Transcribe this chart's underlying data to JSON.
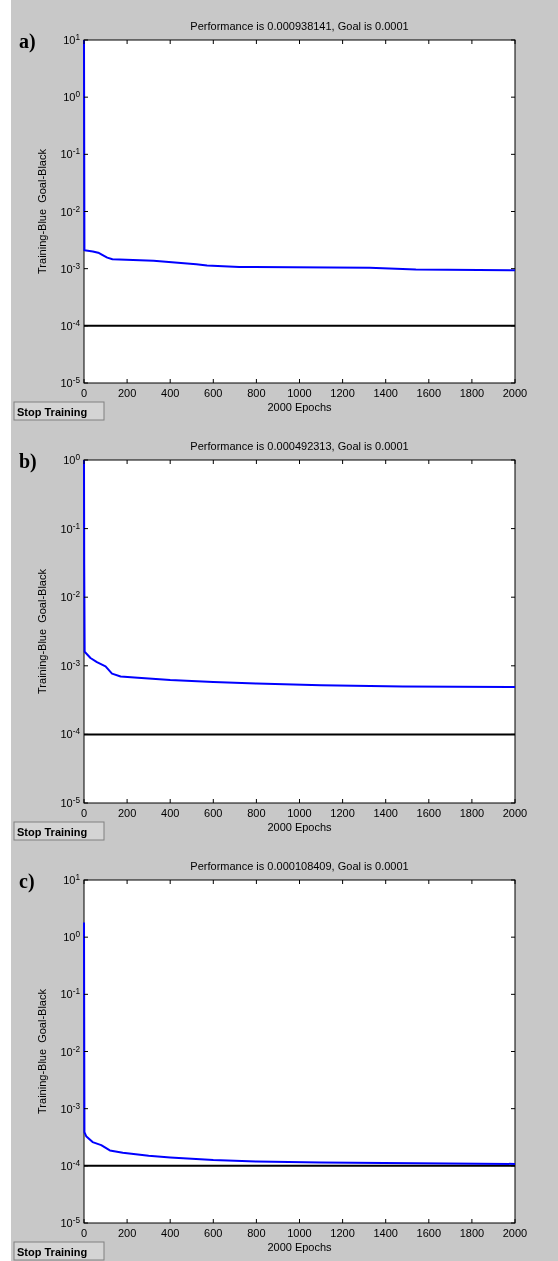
{
  "chart_data": [
    {
      "type": "line",
      "title": "Performance is 0.000938141, Goal is 0.0001",
      "xlabel": "2000 Epochs",
      "ylabel": "Training-Blue  Goal-Black",
      "annotations": [
        "a)",
        "Stop Training"
      ],
      "log": "y",
      "grid": false,
      "marker": "none",
      "line_style": "solid",
      "xlim": [
        0,
        2000
      ],
      "xticks": [
        0,
        200,
        400,
        600,
        800,
        1000,
        1200,
        1400,
        1600,
        1800,
        2000
      ],
      "ylim": [
        1e-05,
        10
      ],
      "yticks": [
        {
          "value": 1e-05,
          "label": "10$^{-5}$"
        },
        {
          "value": 0.0001,
          "label": "10$^{-4}$"
        },
        {
          "value": 0.001,
          "label": "10$^{-3}$"
        },
        {
          "value": 0.01,
          "label": "10$^{-2}$"
        },
        {
          "value": 0.1,
          "label": "10$^{-1}$"
        },
        {
          "value": 1,
          "label": "10$^{0}$"
        },
        {
          "value": 10,
          "label": "10$^{1}$"
        }
      ],
      "ref_lines": [
        {
          "axis": "y",
          "value": 0.0001,
          "color": "#000000"
        }
      ],
      "series": [
        {
          "color": "#0000ff",
          "x": [
            0,
            2,
            41,
            66,
            108,
            132,
            323,
            422,
            521,
            571,
            720,
            1325,
            1540,
            2000
          ],
          "values": [
            10,
            0.0021,
            0.002,
            0.0019,
            0.00156,
            0.00146,
            0.00137,
            0.00128,
            0.0012,
            0.00114,
            0.00107,
            0.00104,
            0.00097,
            0.000938
          ]
        }
      ]
    },
    {
      "type": "line",
      "title": "Performance is 0.000492313, Goal is 0.0001",
      "xlabel": "2000 Epochs",
      "ylabel": "Training-Blue  Goal-Black",
      "annotations": [
        "b)",
        "Stop Training"
      ],
      "log": "y",
      "grid": false,
      "marker": "none",
      "line_style": "solid",
      "xlim": [
        0,
        2000
      ],
      "xticks": [
        0,
        200,
        400,
        600,
        800,
        1000,
        1200,
        1400,
        1600,
        1800,
        2000
      ],
      "ylim": [
        1e-05,
        1
      ],
      "yticks": [
        {
          "value": 1e-05,
          "label": "10$^{-5}$"
        },
        {
          "value": 0.0001,
          "label": "10$^{-4}$"
        },
        {
          "value": 0.001,
          "label": "10$^{-3}$"
        },
        {
          "value": 0.01,
          "label": "10$^{-2}$"
        },
        {
          "value": 0.1,
          "label": "10$^{-1}$"
        },
        {
          "value": 1,
          "label": "10$^{0}$"
        }
      ],
      "ref_lines": [
        {
          "axis": "y",
          "value": 0.0001,
          "color": "#000000"
        }
      ],
      "series": [
        {
          "color": "#0000ff",
          "x": [
            0,
            1,
            3,
            30,
            60,
            100,
            130,
            170,
            250,
            400,
            600,
            800,
            1100,
            1480,
            2000
          ],
          "values": [
            1,
            0.03,
            0.0016,
            0.0013,
            0.00113,
            0.00098,
            0.00077,
            0.0007,
            0.00067,
            0.00062,
            0.00058,
            0.00055,
            0.00052,
            0.0005,
            0.000492
          ]
        }
      ]
    },
    {
      "type": "line",
      "title": "Performance is 0.000108409, Goal is 0.0001",
      "xlabel": "2000 Epochs",
      "ylabel": "Training-Blue  Goal-Black",
      "annotations": [
        "c)",
        "Stop Training"
      ],
      "log": "y",
      "grid": false,
      "marker": "none",
      "line_style": "solid",
      "xlim": [
        0,
        2000
      ],
      "xticks": [
        0,
        200,
        400,
        600,
        800,
        1000,
        1200,
        1400,
        1600,
        1800,
        2000
      ],
      "ylim": [
        1e-05,
        10
      ],
      "yticks": [
        {
          "value": 1e-05,
          "label": "10$^{-5}$"
        },
        {
          "value": 0.0001,
          "label": "10$^{-4}$"
        },
        {
          "value": 0.001,
          "label": "10$^{-3}$"
        },
        {
          "value": 0.01,
          "label": "10$^{-2}$"
        },
        {
          "value": 0.1,
          "label": "10$^{-1}$"
        },
        {
          "value": 1,
          "label": "10$^{0}$"
        },
        {
          "value": 10,
          "label": "10$^{1}$"
        }
      ],
      "ref_lines": [
        {
          "axis": "y",
          "value": 0.0001,
          "color": "#000000"
        }
      ],
      "series": [
        {
          "color": "#0000ff",
          "x": [
            0,
            2,
            10,
            40,
            80,
            120,
            180,
            300,
            400,
            600,
            800,
            1100,
            2000
          ],
          "values": [
            1.8,
            0.00039,
            0.00033,
            0.00026,
            0.00023,
            0.000186,
            0.00017,
            0.00015,
            0.00014,
            0.000126,
            0.000119,
            0.000114,
            0.000108
          ]
        }
      ]
    }
  ]
}
